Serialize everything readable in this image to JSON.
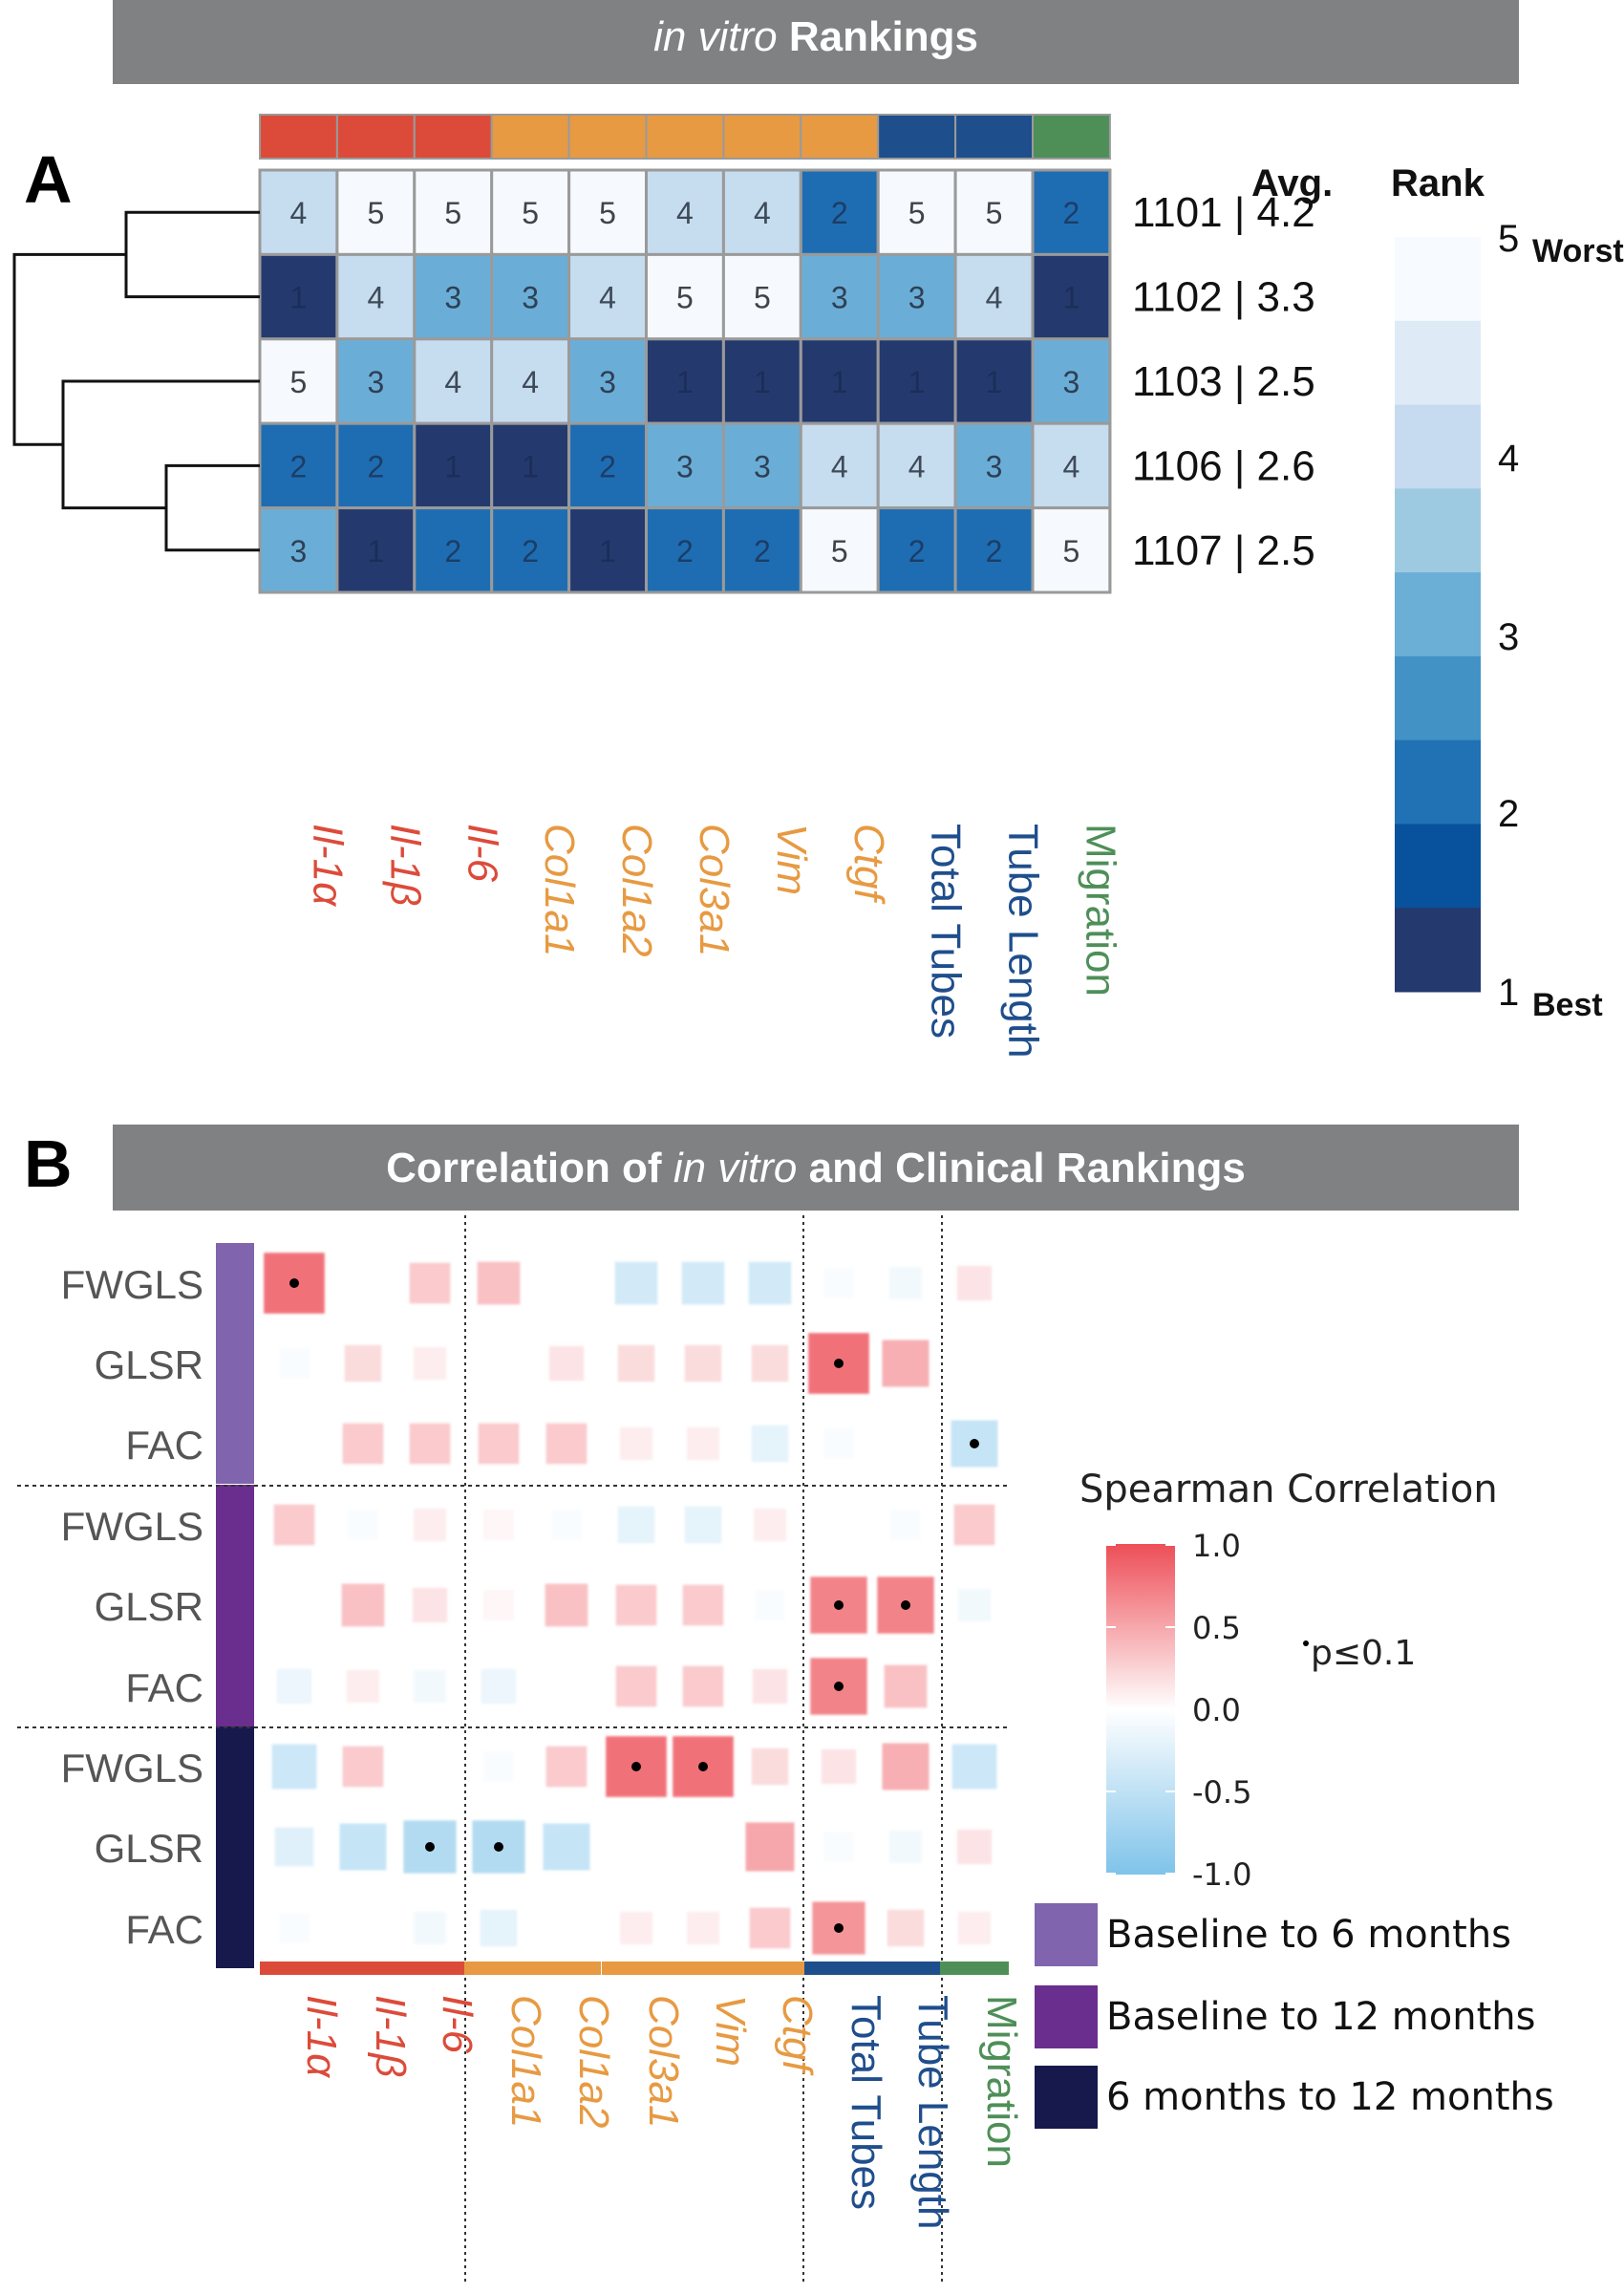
{
  "panel_a": {
    "letter": "A",
    "banner_italic": "in vitro",
    "banner_bold": "Rankings",
    "header_avg": "Avg.",
    "header_rank": "Rank"
  },
  "panel_b": {
    "letter": "B",
    "banner_bold_1": "Correlation of",
    "banner_italic": "in vitro",
    "banner_bold_2": "and Clinical Rankings"
  },
  "colors": {
    "red": "#DC4B3A",
    "orange": "#E79A42",
    "blue": "#1F4E8C",
    "green": "#4E8F58",
    "period1": "#8064AE",
    "period2": "#6A2E8E",
    "period3": "#17194C"
  },
  "chart_data": [
    {
      "type": "heatmap",
      "title": "in vitro Rankings",
      "columns": [
        {
          "label": "Il-1α",
          "italic": true,
          "group_color": "#DC4B3A"
        },
        {
          "label": "Il-1β",
          "italic": true,
          "group_color": "#DC4B3A"
        },
        {
          "label": "Il-6",
          "italic": true,
          "group_color": "#DC4B3A"
        },
        {
          "label": "Col1a1",
          "italic": true,
          "group_color": "#E79A42"
        },
        {
          "label": "Col1a2",
          "italic": true,
          "group_color": "#E79A42"
        },
        {
          "label": "Col3a1",
          "italic": true,
          "group_color": "#E79A42"
        },
        {
          "label": "Vim",
          "italic": true,
          "group_color": "#E79A42"
        },
        {
          "label": "Ctgf",
          "italic": true,
          "group_color": "#E79A42"
        },
        {
          "label": "Total Tubes",
          "italic": false,
          "group_color": "#1F4E8C"
        },
        {
          "label": "Tube Length",
          "italic": false,
          "group_color": "#1F4E8C"
        },
        {
          "label": "Migration",
          "italic": false,
          "group_color": "#4E8F58"
        }
      ],
      "rows": [
        {
          "label": "1101 | 4.2",
          "values": [
            4,
            5,
            5,
            5,
            5,
            4,
            4,
            2,
            5,
            5,
            2
          ]
        },
        {
          "label": "1102 | 3.3",
          "values": [
            1,
            4,
            3,
            3,
            4,
            5,
            5,
            3,
            3,
            4,
            1
          ]
        },
        {
          "label": "1103 | 2.5",
          "values": [
            5,
            3,
            4,
            4,
            3,
            1,
            1,
            1,
            1,
            1,
            3
          ]
        },
        {
          "label": "1106 | 2.6",
          "values": [
            2,
            2,
            1,
            1,
            2,
            3,
            3,
            4,
            4,
            3,
            4
          ]
        },
        {
          "label": "1107 | 2.5",
          "values": [
            3,
            1,
            2,
            2,
            1,
            2,
            2,
            5,
            2,
            2,
            5
          ]
        }
      ],
      "dendrogram": [
        [
          "1101",
          "1102"
        ],
        [
          "1106",
          "1107"
        ],
        [
          [
            "1106",
            "1107"
          ],
          "1103"
        ],
        [
          [
            "1101",
            "1102"
          ],
          [
            [
              "1106",
              "1107"
            ],
            "1103"
          ]
        ]
      ],
      "color_scale": {
        "range": [
          1,
          5
        ],
        "ticks": [
          {
            "value": 5,
            "label": "5",
            "note": "Worst"
          },
          {
            "value": 4,
            "label": "4",
            "note": ""
          },
          {
            "value": 3,
            "label": "3",
            "note": ""
          },
          {
            "value": 2,
            "label": "2",
            "note": ""
          },
          {
            "value": 1,
            "label": "1",
            "note": "Best"
          }
        ],
        "colors": [
          "#F7FBFF",
          "#DEEBF7",
          "#C6DBEF",
          "#9ECAE1",
          "#6BAED6",
          "#4292C6",
          "#2171B5",
          "#08519C",
          "#243A6E"
        ]
      }
    },
    {
      "type": "heatmap",
      "title": "Correlation of in vitro and Clinical Rankings",
      "columns": [
        "Il-1α",
        "Il-1β",
        "Il-6",
        "Col1a1",
        "Col1a2",
        "Col3a1",
        "Vim",
        "Ctgf",
        "Total Tubes",
        "Tube Length",
        "Migration"
      ],
      "column_italic": [
        true,
        true,
        true,
        true,
        true,
        true,
        true,
        true,
        false,
        false,
        false
      ],
      "column_colors": [
        "#DC4B3A",
        "#DC4B3A",
        "#DC4B3A",
        "#E79A42",
        "#E79A42",
        "#E79A42",
        "#E79A42",
        "#E79A42",
        "#1F4E8C",
        "#1F4E8C",
        "#4E8F58"
      ],
      "row_groups": [
        {
          "name": "Baseline to 6 months",
          "color": "#8064AE",
          "rows": [
            {
              "label": "FWGLS",
              "values": [
                0.8,
                0,
                0.3,
                0.35,
                0,
                -0.35,
                -0.35,
                -0.35,
                -0.05,
                -0.1,
                0.15
              ],
              "sig": [
                true,
                false,
                false,
                false,
                false,
                false,
                false,
                false,
                false,
                false,
                false
              ]
            },
            {
              "label": "GLSR",
              "values": [
                -0.05,
                0.2,
                0.1,
                0,
                0.15,
                0.2,
                0.2,
                0.2,
                0.8,
                0.45,
                0
              ],
              "sig": [
                false,
                false,
                false,
                false,
                false,
                false,
                false,
                false,
                true,
                false,
                false
              ]
            },
            {
              "label": "FAC",
              "values": [
                0,
                0.3,
                0.3,
                0.3,
                0.3,
                0.1,
                0.1,
                -0.2,
                -0.05,
                0,
                -0.45
              ],
              "sig": [
                false,
                false,
                false,
                false,
                false,
                false,
                false,
                false,
                false,
                false,
                true
              ]
            }
          ]
        },
        {
          "name": "Baseline to 12 months",
          "color": "#6A2E8E",
          "rows": [
            {
              "label": "FWGLS",
              "values": [
                0.3,
                -0.05,
                0.1,
                0.05,
                -0.05,
                -0.2,
                -0.2,
                0.1,
                0,
                -0.05,
                0.3
              ],
              "sig": [
                false,
                false,
                false,
                false,
                false,
                false,
                false,
                false,
                false,
                false,
                false
              ]
            },
            {
              "label": "GLSR",
              "values": [
                0,
                0.35,
                0.15,
                0.05,
                0.35,
                0.3,
                0.3,
                -0.05,
                0.7,
                0.7,
                -0.1
              ],
              "sig": [
                false,
                false,
                false,
                false,
                false,
                false,
                false,
                false,
                true,
                true,
                false
              ]
            },
            {
              "label": "FAC",
              "values": [
                -0.15,
                0.1,
                -0.1,
                -0.15,
                0,
                0.3,
                0.3,
                0.15,
                0.7,
                0.35,
                0
              ],
              "sig": [
                false,
                false,
                false,
                false,
                false,
                false,
                false,
                false,
                true,
                false,
                false
              ]
            }
          ]
        },
        {
          "name": "6 months to 12 months",
          "color": "#17194C",
          "rows": [
            {
              "label": "FWGLS",
              "values": [
                -0.4,
                0.3,
                0,
                -0.05,
                0.3,
                0.8,
                0.8,
                0.2,
                0.15,
                0.45,
                -0.4
              ],
              "sig": [
                false,
                false,
                false,
                false,
                false,
                true,
                true,
                false,
                false,
                false,
                false
              ]
            },
            {
              "label": "GLSR",
              "values": [
                -0.25,
                -0.45,
                -0.6,
                -0.6,
                -0.45,
                0,
                0,
                0.5,
                -0.05,
                -0.1,
                0.15
              ],
              "sig": [
                false,
                false,
                true,
                true,
                false,
                false,
                false,
                false,
                false,
                false,
                false
              ]
            },
            {
              "label": "FAC",
              "values": [
                -0.05,
                0,
                -0.1,
                -0.2,
                0,
                0.1,
                0.1,
                0.3,
                0.6,
                0.2,
                0.1
              ],
              "sig": [
                false,
                false,
                false,
                false,
                false,
                false,
                false,
                false,
                true,
                false,
                false
              ]
            }
          ]
        }
      ],
      "legend": {
        "title": "Spearman Correlation",
        "ticks": [
          "1.0",
          "0.5",
          "0.0",
          "-0.5",
          "-1.0"
        ],
        "range": [
          -1.0,
          1.0
        ],
        "sig_label": "p≤0.1"
      }
    }
  ]
}
